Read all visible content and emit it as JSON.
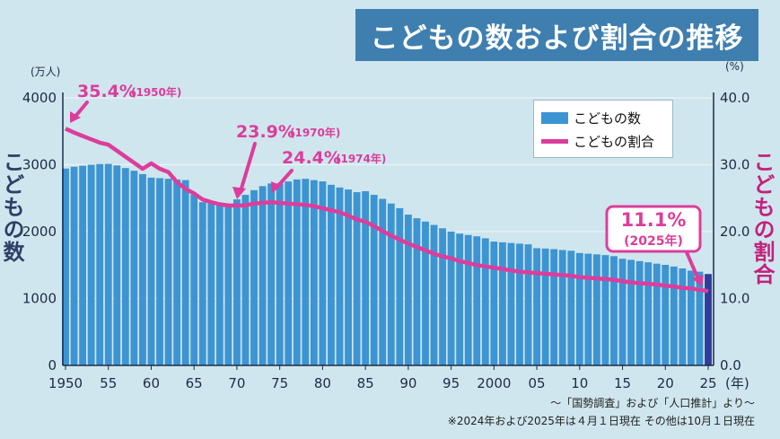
{
  "title": "こどもの数および割合の推移",
  "left_unit": "(万人)",
  "right_unit": "(%)",
  "x_unit": "(年)",
  "left_axis_label": "こどもの数",
  "right_axis_label": "こどもの割合",
  "legend": {
    "bar": "こどもの数",
    "line": "こどもの割合"
  },
  "source": "〜「国勢調査」および「人口推計」より〜",
  "note": "※2024年および2025年は４月１日現在 その他は10月１日現在",
  "colors": {
    "bar": "#3d94d2",
    "bar_last": "#2f3c9c",
    "line": "#dc3d9b",
    "title_bg": "#3f7fb0"
  },
  "annotations": [
    {
      "pct": "35.4%",
      "year": "(1950年)"
    },
    {
      "pct": "23.9%",
      "year": "(1970年)"
    },
    {
      "pct": "24.4%",
      "year": "(1974年)"
    },
    {
      "pct": "11.1%",
      "year": "(2025年)"
    }
  ],
  "chart_data": {
    "type": "bar",
    "x_tick_labels": [
      "1950",
      "55",
      "60",
      "65",
      "70",
      "75",
      "80",
      "85",
      "90",
      "95",
      "2000",
      "05",
      "10",
      "15",
      "20",
      "25"
    ],
    "y_left": {
      "ylim": [
        0,
        4000
      ],
      "ticks": [
        "0",
        "1000",
        "2000",
        "3000",
        "4000"
      ]
    },
    "y_right": {
      "ylim": [
        0.0,
        40.0
      ],
      "ticks": [
        "0.0",
        "10.0",
        "20.0",
        "30.0",
        "40.0"
      ]
    },
    "grid": true,
    "legend_position": "top-right",
    "years": [
      1950,
      1951,
      1952,
      1953,
      1954,
      1955,
      1956,
      1957,
      1958,
      1959,
      1960,
      1961,
      1962,
      1963,
      1964,
      1965,
      1966,
      1967,
      1968,
      1969,
      1970,
      1971,
      1972,
      1973,
      1974,
      1975,
      1976,
      1977,
      1978,
      1979,
      1980,
      1981,
      1982,
      1983,
      1984,
      1985,
      1986,
      1987,
      1988,
      1989,
      1990,
      1991,
      1992,
      1993,
      1994,
      1995,
      1996,
      1997,
      1998,
      1999,
      2000,
      2001,
      2002,
      2003,
      2004,
      2005,
      2006,
      2007,
      2008,
      2009,
      2010,
      2011,
      2012,
      2013,
      2014,
      2015,
      2016,
      2017,
      2018,
      2019,
      2020,
      2021,
      2022,
      2023,
      2024,
      2025
    ],
    "series": [
      {
        "name": "こどもの数",
        "values": [
          2943,
          2970,
          2985,
          3000,
          3010,
          3012,
          2990,
          2950,
          2910,
          2860,
          2807,
          2800,
          2790,
          2780,
          2770,
          2553,
          2440,
          2420,
          2400,
          2380,
          2482,
          2550,
          2620,
          2680,
          2720,
          2722,
          2750,
          2780,
          2790,
          2770,
          2751,
          2700,
          2660,
          2630,
          2590,
          2604,
          2550,
          2490,
          2420,
          2350,
          2254,
          2200,
          2150,
          2100,
          2050,
          2001,
          1970,
          1950,
          1930,
          1900,
          1851,
          1840,
          1830,
          1820,
          1810,
          1752,
          1747,
          1738,
          1725,
          1714,
          1680,
          1670,
          1660,
          1649,
          1633,
          1595,
          1578,
          1559,
          1541,
          1521,
          1503,
          1478,
          1450,
          1417,
          1401,
          1366
        ]
      },
      {
        "name": "こどもの割合",
        "values": [
          35.4,
          34.8,
          34.3,
          33.8,
          33.3,
          33.0,
          32.1,
          31.2,
          30.3,
          29.4,
          30.2,
          29.4,
          28.9,
          27.4,
          26.4,
          25.7,
          24.8,
          24.4,
          24.1,
          23.9,
          23.9,
          23.9,
          24.2,
          24.3,
          24.4,
          24.3,
          24.2,
          24.1,
          24.0,
          23.8,
          23.5,
          23.2,
          22.9,
          22.4,
          21.8,
          21.5,
          20.8,
          20.1,
          19.4,
          18.8,
          18.2,
          17.7,
          17.2,
          16.7,
          16.3,
          16.0,
          15.6,
          15.3,
          15.0,
          14.8,
          14.6,
          14.4,
          14.2,
          14.0,
          13.9,
          13.8,
          13.7,
          13.6,
          13.5,
          13.4,
          13.2,
          13.1,
          13.0,
          12.9,
          12.8,
          12.6,
          12.4,
          12.3,
          12.2,
          12.1,
          11.9,
          11.8,
          11.6,
          11.5,
          11.3,
          11.1
        ]
      }
    ]
  }
}
